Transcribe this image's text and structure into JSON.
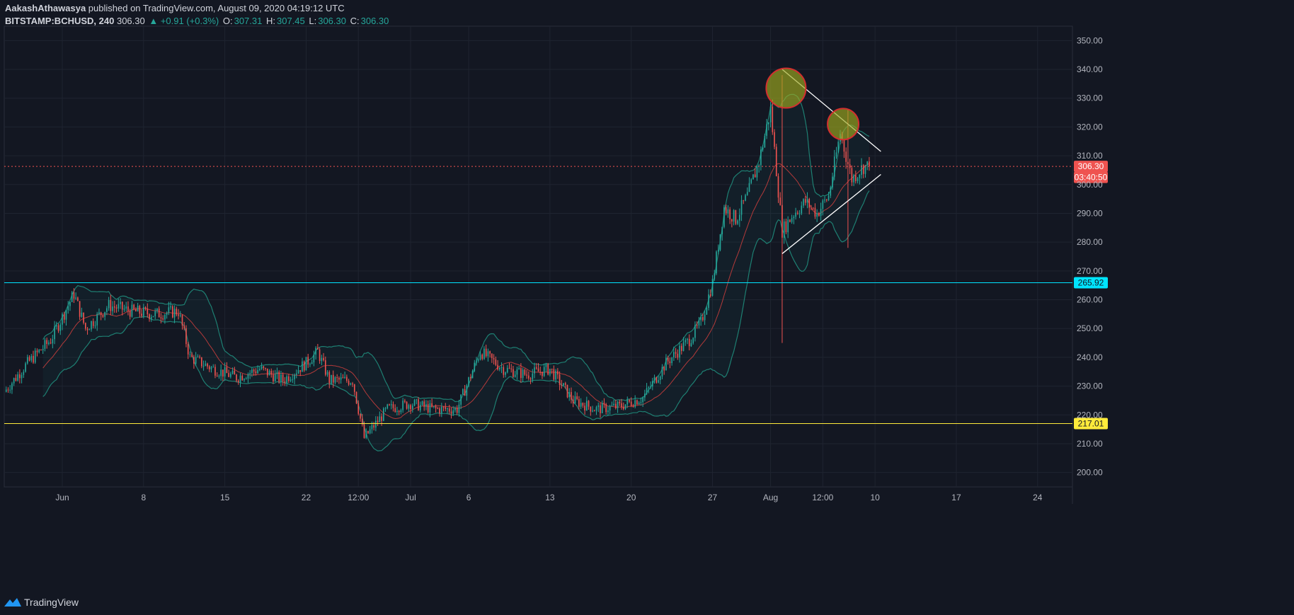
{
  "header": {
    "author": "AakashAthawasya",
    "published": "published on TradingView.com, August 09, 2020 04:19:12 UTC",
    "symbol": "BITSTAMP:BCHUSD, 240",
    "last": "306.30",
    "change": "▲ +0.91 (+0.3%)",
    "o_label": "O:",
    "o_value": "307.31",
    "h_label": "H:",
    "h_value": "307.45",
    "l_label": "L:",
    "l_value": "306.30",
    "c_label": "C:",
    "c_value": "306.30"
  },
  "footer": {
    "brand": "TradingView"
  },
  "chart_data": {
    "type": "candlestick",
    "y_range": [
      195,
      355
    ],
    "y_ticks": [
      200,
      210,
      220,
      230,
      240,
      250,
      260,
      270,
      280,
      290,
      300,
      310,
      320,
      330,
      340,
      350
    ],
    "y_tick_labels": [
      "200.00",
      "210.00",
      "220.00",
      "230.00",
      "240.00",
      "250.00",
      "260.00",
      "270.00",
      "280.00",
      "290.00",
      "300.00",
      "310.00",
      "320.00",
      "330.00",
      "340.00",
      "350.00"
    ],
    "x_range": [
      "2020-05-27",
      "2020-08-27"
    ],
    "x_ticks": [
      {
        "date": "2020-06-01",
        "label": "Jun"
      },
      {
        "date": "2020-06-08",
        "label": "8"
      },
      {
        "date": "2020-06-15",
        "label": "15"
      },
      {
        "date": "2020-06-22",
        "label": "22"
      },
      {
        "date": "2020-06-26T12:00",
        "label": "12:00"
      },
      {
        "date": "2020-07-01",
        "label": "Jul"
      },
      {
        "date": "2020-07-06",
        "label": "6"
      },
      {
        "date": "2020-07-13",
        "label": "13"
      },
      {
        "date": "2020-07-20",
        "label": "20"
      },
      {
        "date": "2020-07-27",
        "label": "27"
      },
      {
        "date": "2020-08-01",
        "label": "Aug"
      },
      {
        "date": "2020-08-05T12:00",
        "label": "12:00"
      },
      {
        "date": "2020-08-10",
        "label": "10"
      },
      {
        "date": "2020-08-17",
        "label": "17"
      },
      {
        "date": "2020-08-24",
        "label": "24"
      }
    ],
    "price_key_points": [
      {
        "date": "2020-05-27",
        "price": 228
      },
      {
        "date": "2020-05-29",
        "price": 238
      },
      {
        "date": "2020-05-31",
        "price": 246
      },
      {
        "date": "2020-06-02",
        "price": 262
      },
      {
        "date": "2020-06-03",
        "price": 250
      },
      {
        "date": "2020-06-05",
        "price": 258
      },
      {
        "date": "2020-06-07",
        "price": 256
      },
      {
        "date": "2020-06-09",
        "price": 255
      },
      {
        "date": "2020-06-11",
        "price": 256
      },
      {
        "date": "2020-06-12",
        "price": 240
      },
      {
        "date": "2020-06-14",
        "price": 236
      },
      {
        "date": "2020-06-16",
        "price": 233
      },
      {
        "date": "2020-06-18",
        "price": 236
      },
      {
        "date": "2020-06-20",
        "price": 232
      },
      {
        "date": "2020-06-22",
        "price": 238
      },
      {
        "date": "2020-06-23",
        "price": 242
      },
      {
        "date": "2020-06-24",
        "price": 232
      },
      {
        "date": "2020-06-26",
        "price": 232
      },
      {
        "date": "2020-06-27",
        "price": 212
      },
      {
        "date": "2020-06-29",
        "price": 222
      },
      {
        "date": "2020-07-01",
        "price": 224
      },
      {
        "date": "2020-07-03",
        "price": 222
      },
      {
        "date": "2020-07-05",
        "price": 222
      },
      {
        "date": "2020-07-07",
        "price": 242
      },
      {
        "date": "2020-07-09",
        "price": 236
      },
      {
        "date": "2020-07-11",
        "price": 234
      },
      {
        "date": "2020-07-13",
        "price": 236
      },
      {
        "date": "2020-07-15",
        "price": 225
      },
      {
        "date": "2020-07-17",
        "price": 222
      },
      {
        "date": "2020-07-19",
        "price": 223
      },
      {
        "date": "2020-07-21",
        "price": 226
      },
      {
        "date": "2020-07-23",
        "price": 238
      },
      {
        "date": "2020-07-25",
        "price": 246
      },
      {
        "date": "2020-07-26",
        "price": 252
      },
      {
        "date": "2020-07-27",
        "price": 266
      },
      {
        "date": "2020-07-28",
        "price": 292
      },
      {
        "date": "2020-07-29",
        "price": 288
      },
      {
        "date": "2020-07-30",
        "price": 296
      },
      {
        "date": "2020-07-31",
        "price": 308
      },
      {
        "date": "2020-08-01",
        "price": 326
      },
      {
        "date": "2020-08-02",
        "price": 284
      },
      {
        "date": "2020-08-03",
        "price": 290
      },
      {
        "date": "2020-08-04",
        "price": 294
      },
      {
        "date": "2020-08-05",
        "price": 290
      },
      {
        "date": "2020-08-06",
        "price": 296
      },
      {
        "date": "2020-08-07",
        "price": 318
      },
      {
        "date": "2020-08-08",
        "price": 302
      },
      {
        "date": "2020-08-09",
        "price": 306.3
      }
    ],
    "spike_wicks": [
      {
        "date": "2020-08-02",
        "high": 338,
        "low": 245
      },
      {
        "date": "2020-08-07T16:00",
        "high": 326,
        "low": 278
      }
    ],
    "horizontal_levels": [
      {
        "value": 306.3,
        "label": "306.30",
        "color": "#ef5350",
        "style": "dotted"
      },
      {
        "value": 265.92,
        "label": "265.92",
        "color": "#00e5ff",
        "style": "solid"
      },
      {
        "value": 217.01,
        "label": "217.01",
        "color": "#ffeb3b",
        "style": "solid"
      }
    ],
    "countdown": {
      "label": "03:40:50",
      "value": 302.5
    },
    "trendlines": [
      {
        "from": {
          "date": "2020-08-02",
          "price": 340
        },
        "to": {
          "date": "2020-08-10T12:00",
          "price": 311.5
        }
      },
      {
        "from": {
          "date": "2020-08-02",
          "price": 276
        },
        "to": {
          "date": "2020-08-10T12:00",
          "price": 303.5
        }
      }
    ],
    "highlight_circles": [
      {
        "date": "2020-08-02T08:00",
        "price": 333.5
      },
      {
        "date": "2020-08-07T06:00",
        "price": 321
      }
    ],
    "indicators": [
      "Bollinger Bands"
    ],
    "colors": {
      "background": "#131722",
      "up": "#26a69a",
      "down": "#ef5350",
      "band": "#1e7f72",
      "basis": "#b33a3a",
      "grid": "#1f2430"
    }
  }
}
